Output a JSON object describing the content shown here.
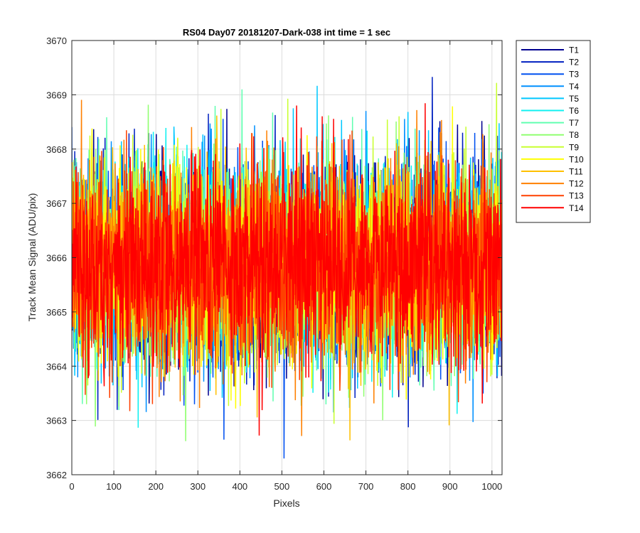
{
  "chart_data": {
    "type": "line",
    "title": "RS04 Day07 20181207-Dark-038 int time = 1 sec",
    "xlabel": "Pixels",
    "ylabel": "Track Mean Signal (ADU/pix)",
    "xlim": [
      0,
      1024
    ],
    "ylim": [
      3662,
      3670
    ],
    "xticks": [
      0,
      100,
      200,
      300,
      400,
      500,
      600,
      700,
      800,
      900,
      1000
    ],
    "yticks": [
      3662,
      3663,
      3664,
      3665,
      3666,
      3667,
      3668,
      3669,
      3670
    ],
    "grid": true,
    "legend_position": "outside-top-right",
    "x_points": 1024,
    "center_value": 3665.9,
    "approx_std": 0.9,
    "approx_min": 3662.3,
    "approx_max": 3669.5,
    "series": [
      {
        "name": "T1",
        "color": "#00008f",
        "mean": 3665.9
      },
      {
        "name": "T2",
        "color": "#0020c0",
        "mean": 3665.9
      },
      {
        "name": "T3",
        "color": "#0050f0",
        "mean": 3665.9
      },
      {
        "name": "T4",
        "color": "#0090ff",
        "mean": 3665.9
      },
      {
        "name": "T5",
        "color": "#00c8ff",
        "mean": 3665.9
      },
      {
        "name": "T6",
        "color": "#10f0f0",
        "mean": 3665.9
      },
      {
        "name": "T7",
        "color": "#60ffb0",
        "mean": 3665.9
      },
      {
        "name": "T8",
        "color": "#90ff70",
        "mean": 3665.9
      },
      {
        "name": "T9",
        "color": "#c8ff30",
        "mean": 3665.9
      },
      {
        "name": "T10",
        "color": "#ffff00",
        "mean": 3665.9
      },
      {
        "name": "T11",
        "color": "#ffc000",
        "mean": 3665.9
      },
      {
        "name": "T12",
        "color": "#ff8000",
        "mean": 3665.9
      },
      {
        "name": "T13",
        "color": "#ff4000",
        "mean": 3665.9
      },
      {
        "name": "T14",
        "color": "#ff0000",
        "mean": 3665.9
      }
    ]
  }
}
